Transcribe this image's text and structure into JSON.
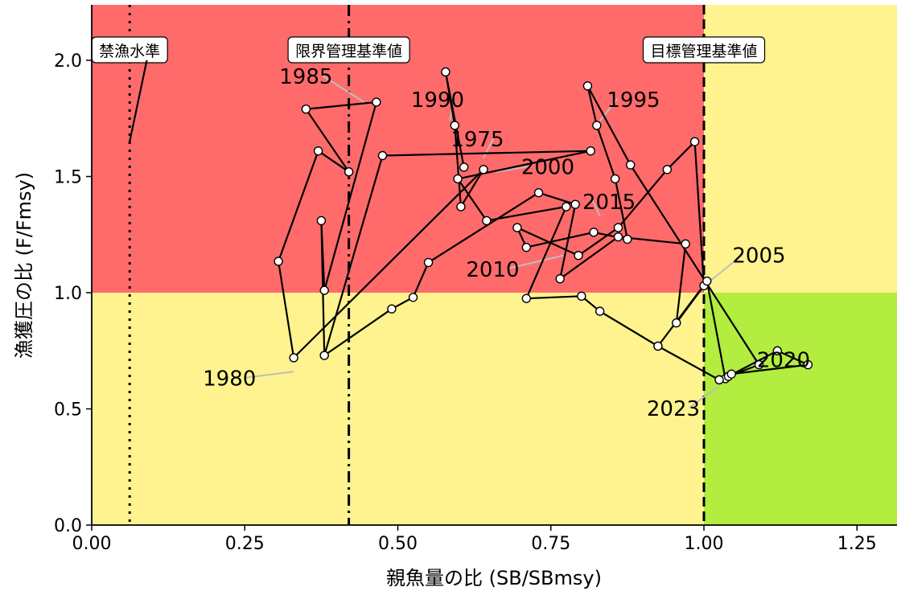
{
  "chart_data": {
    "type": "scatter",
    "xlabel": "親魚量の比 (SB/SBmsy)",
    "ylabel": "漁獲圧の比 (F/Fmsy)",
    "xlim": [
      0,
      1.32
    ],
    "ylim": [
      0,
      2.24
    ],
    "x_ticks": [
      {
        "value": 0,
        "label": "0.00"
      },
      {
        "value": 0.25,
        "label": "0.25"
      },
      {
        "value": 0.5,
        "label": "0.50"
      },
      {
        "value": 0.75,
        "label": "0.75"
      },
      {
        "value": 1.0,
        "label": "1.00"
      },
      {
        "value": 1.25,
        "label": "1.25"
      }
    ],
    "y_ticks": [
      {
        "value": 0,
        "label": "0.0"
      },
      {
        "value": 0.5,
        "label": "0.5"
      },
      {
        "value": 1.0,
        "label": "1.0"
      },
      {
        "value": 1.5,
        "label": "1.5"
      },
      {
        "value": 2.0,
        "label": "2.0"
      }
    ],
    "zones": [
      {
        "x": [
          0,
          1.0
        ],
        "y": [
          1.0,
          2.24
        ],
        "color": "#ff6b6b"
      },
      {
        "x": [
          1.0,
          1.32
        ],
        "y": [
          1.0,
          2.24
        ],
        "color": "#fff38f"
      },
      {
        "x": [
          0,
          1.0
        ],
        "y": [
          0,
          1.0
        ],
        "color": "#fff38f"
      },
      {
        "x": [
          1.0,
          1.32
        ],
        "y": [
          0,
          1.0
        ],
        "color": "#b2ed3f"
      }
    ],
    "reference_lines": [
      {
        "x": 0.062,
        "style": "dotted",
        "label": "禁漁水準"
      },
      {
        "x": 0.42,
        "style": "dashdot",
        "label": "限界管理基準値"
      },
      {
        "x": 1.0,
        "style": "dashed",
        "label": "目標管理基準値"
      }
    ],
    "extra_segment": [
      [
        0.062,
        1.65
      ],
      [
        0.09,
        2.0
      ]
    ],
    "trajectory": [
      [
        0.608,
        1.54
      ],
      [
        0.578,
        1.95
      ],
      [
        0.593,
        1.72
      ],
      [
        0.603,
        1.37
      ],
      [
        0.64,
        1.53
      ],
      [
        0.33,
        0.72
      ],
      [
        0.305,
        1.135
      ],
      [
        0.37,
        1.61
      ],
      [
        0.42,
        1.52
      ],
      [
        0.35,
        1.79
      ],
      [
        0.465,
        1.82
      ],
      [
        0.38,
        1.01
      ],
      [
        0.375,
        1.31
      ],
      [
        0.38,
        0.73
      ],
      [
        0.475,
        1.59
      ],
      [
        0.815,
        1.61
      ],
      [
        0.598,
        1.49
      ],
      [
        0.645,
        1.31
      ],
      [
        0.775,
        1.37
      ],
      [
        0.71,
        0.975
      ],
      [
        0.8,
        0.985
      ],
      [
        0.83,
        0.92
      ],
      [
        0.925,
        0.77
      ],
      [
        1.025,
        0.625
      ],
      [
        1.09,
        0.69
      ],
      [
        0.88,
        1.55
      ],
      [
        0.81,
        1.89
      ],
      [
        0.825,
        1.72
      ],
      [
        0.855,
        1.49
      ],
      [
        0.875,
        1.23
      ],
      [
        0.82,
        1.26
      ],
      [
        0.71,
        1.195
      ],
      [
        0.695,
        1.28
      ],
      [
        0.795,
        1.16
      ],
      [
        0.86,
        1.28
      ],
      [
        0.94,
        1.53
      ],
      [
        0.985,
        1.65
      ],
      [
        1.0,
        1.03
      ],
      [
        0.955,
        0.87
      ],
      [
        0.97,
        1.21
      ],
      [
        0.86,
        1.24
      ],
      [
        0.765,
        1.06
      ],
      [
        0.79,
        1.38
      ],
      [
        0.73,
        1.43
      ],
      [
        0.55,
        1.13
      ],
      [
        0.525,
        0.98
      ],
      [
        0.49,
        0.93
      ],
      [
        0.38,
        0.73
      ]
    ],
    "trajectory_tail": [
      [
        0.925,
        0.77
      ],
      [
        1.005,
        1.05
      ],
      [
        1.035,
        0.63
      ],
      [
        1.04,
        0.64
      ],
      [
        1.12,
        0.75
      ],
      [
        1.17,
        0.69
      ],
      [
        1.045,
        0.65
      ],
      [
        1.025,
        0.625
      ]
    ],
    "year_labels": [
      {
        "text": "1975",
        "x": 0.63,
        "y": 1.63,
        "px": 0.64,
        "py": 1.58
      },
      {
        "text": "1980",
        "x": 0.225,
        "y": 0.6,
        "px": 0.33,
        "py": 0.66
      },
      {
        "text": "1985",
        "x": 0.35,
        "y": 1.9,
        "px": 0.445,
        "py": 1.82
      },
      {
        "text": "1990",
        "x": 0.565,
        "y": 1.8,
        "px": 0.585,
        "py": 1.74
      },
      {
        "text": "1995",
        "x": 0.885,
        "y": 1.8,
        "px": 0.83,
        "py": 1.74
      },
      {
        "text": "2000",
        "x": 0.745,
        "y": 1.51,
        "px": 0.66,
        "py": 1.52
      },
      {
        "text": "2005",
        "x": 1.09,
        "y": 1.13,
        "px": 1.01,
        "py": 1.05
      },
      {
        "text": "2010",
        "x": 0.655,
        "y": 1.07,
        "px": 0.77,
        "py": 1.16
      },
      {
        "text": "2015",
        "x": 0.845,
        "y": 1.36,
        "px": 0.83,
        "py": 1.33
      },
      {
        "text": "2020",
        "x": 1.13,
        "y": 0.68,
        "px": 1.08,
        "py": 0.71
      },
      {
        "text": "2023",
        "x": 0.95,
        "y": 0.47,
        "px": 1.025,
        "py": 0.6
      }
    ]
  }
}
